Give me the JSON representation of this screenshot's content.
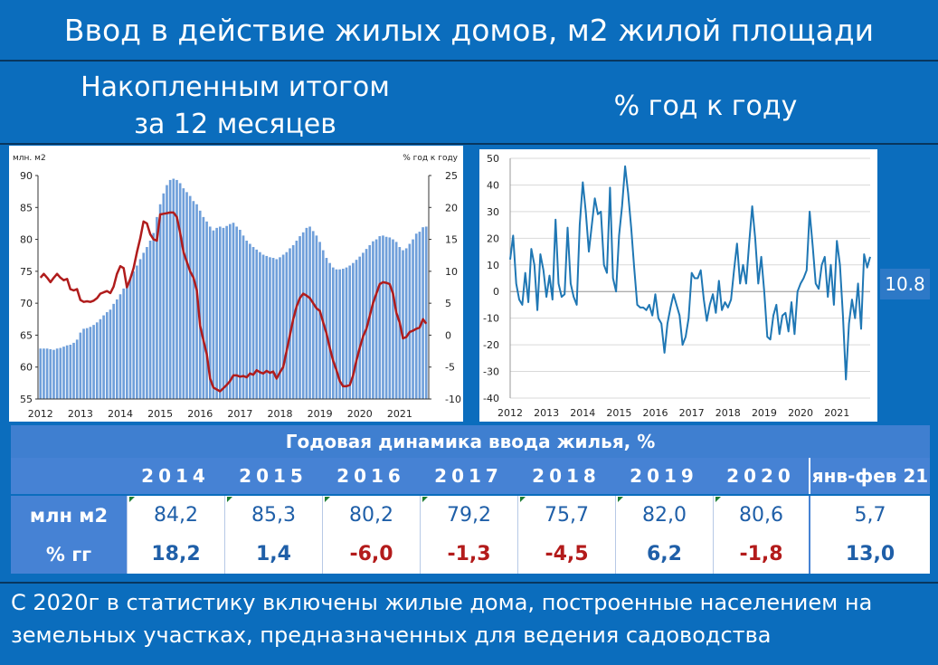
{
  "title": "Ввод в действие жилых домов, м2 жилой площади",
  "subtitle_left_line1": "Накопленным итогом",
  "subtitle_left_line2": "за 12 месяцев",
  "subtitle_right": "% год к году",
  "callout": "10.8",
  "colors": {
    "background": "#0b6dbd",
    "bars": "#6f9fda",
    "red_line": "#b01c1c",
    "blue_line": "#1f77b4",
    "table_header": "#3f7fd0",
    "negative": "#b31b1b"
  },
  "chart_data": [
    {
      "type": "bar+line",
      "left_axis_label": "млн. м2",
      "right_axis_label": "% год к году",
      "ylim_left": [
        55,
        90
      ],
      "ylim_right": [
        -10,
        25
      ],
      "y_ticks_left": [
        55,
        60,
        65,
        70,
        75,
        80,
        85,
        90
      ],
      "y_ticks_right": [
        -10,
        -5,
        0,
        5,
        10,
        15,
        20,
        25
      ],
      "x_ticks": [
        "2012",
        "2013",
        "2014",
        "2015",
        "2016",
        "2017",
        "2018",
        "2019",
        "2020",
        "2021"
      ],
      "start": "2012-01",
      "series": [
        {
          "type": "bar",
          "axis": "left",
          "values": [
            62.9,
            62.9,
            62.9,
            62.8,
            62.7,
            62.9,
            63.0,
            63.2,
            63.4,
            63.5,
            63.8,
            64.3,
            65.4,
            66.0,
            66.1,
            66.3,
            66.6,
            67.0,
            67.5,
            68.1,
            68.6,
            69.0,
            69.9,
            70.6,
            71.4,
            72.3,
            73.0,
            73.9,
            75.0,
            75.9,
            76.9,
            77.9,
            78.8,
            79.8,
            81.0,
            83.5,
            85.5,
            87.2,
            88.5,
            89.3,
            89.5,
            89.3,
            88.8,
            88.0,
            87.4,
            86.8,
            86.0,
            85.5,
            84.5,
            83.5,
            82.8,
            82.0,
            81.4,
            81.8,
            82.0,
            81.8,
            82.1,
            82.4,
            82.6,
            82.0,
            81.5,
            80.6,
            79.8,
            79.3,
            78.8,
            78.4,
            78.0,
            77.6,
            77.4,
            77.2,
            77.1,
            76.9,
            77.2,
            77.6,
            78.0,
            78.6,
            79.1,
            79.8,
            80.5,
            81.1,
            81.8,
            82.0,
            81.3,
            80.6,
            79.6,
            78.3,
            77.1,
            76.3,
            75.6,
            75.3,
            75.3,
            75.4,
            75.6,
            75.9,
            76.3,
            76.8,
            77.3,
            77.9,
            78.5,
            79.1,
            79.7,
            80.0,
            80.5,
            80.6,
            80.4,
            80.3,
            80.0,
            79.6,
            78.8,
            78.3,
            78.6,
            79.3,
            80.0,
            80.9,
            81.2,
            81.9,
            82.0
          ]
        },
        {
          "type": "line",
          "axis": "right",
          "values": [
            9.0,
            9.6,
            9.0,
            8.3,
            9.0,
            9.6,
            9.0,
            8.6,
            8.8,
            7.2,
            7.0,
            7.2,
            5.5,
            5.2,
            5.3,
            5.2,
            5.4,
            5.8,
            6.5,
            6.7,
            6.9,
            6.6,
            7.6,
            9.6,
            10.8,
            10.5,
            7.5,
            8.8,
            10.5,
            13.0,
            15.2,
            17.8,
            17.5,
            15.8,
            15.0,
            14.8,
            18.9,
            19.0,
            19.1,
            19.2,
            19.2,
            18.5,
            16.0,
            13.0,
            11.5,
            10.0,
            9.0,
            7.0,
            1.5,
            -0.8,
            -3.0,
            -6.8,
            -8.2,
            -8.5,
            -8.8,
            -8.3,
            -7.8,
            -7.2,
            -6.3,
            -6.3,
            -6.5,
            -6.4,
            -6.6,
            -6.0,
            -6.2,
            -5.5,
            -5.8,
            -6.0,
            -5.6,
            -5.9,
            -5.7,
            -6.8,
            -5.8,
            -5.0,
            -2.5,
            0.0,
            2.5,
            4.5,
            5.8,
            6.5,
            6.2,
            5.8,
            5.0,
            4.2,
            3.8,
            2.0,
            0.3,
            -2.0,
            -4.0,
            -5.5,
            -7.2,
            -8.0,
            -8.0,
            -7.8,
            -6.3,
            -4.0,
            -2.0,
            -0.2,
            1.0,
            3.0,
            5.0,
            6.5,
            8.0,
            8.3,
            8.2,
            8.0,
            6.5,
            3.5,
            2.0,
            -0.5,
            -0.3,
            0.5,
            0.7,
            1.0,
            1.2,
            2.5,
            1.8
          ]
        }
      ]
    },
    {
      "type": "line",
      "ylim": [
        -40,
        50
      ],
      "y_ticks": [
        -40,
        -30,
        -20,
        -10,
        0,
        10,
        20,
        30,
        40,
        50
      ],
      "x_ticks": [
        "2012",
        "2013",
        "2014",
        "2015",
        "2016",
        "2017",
        "2018",
        "2019",
        "2020",
        "2021"
      ],
      "start": "2012-01",
      "values": [
        12,
        21,
        3,
        -3,
        -5,
        7,
        -4,
        16,
        10,
        -7,
        14,
        8,
        -2,
        6,
        -3,
        27,
        3,
        -2,
        -1,
        24,
        3,
        -2,
        -5,
        25,
        41,
        30,
        15,
        25,
        35,
        29,
        30,
        10,
        7,
        39,
        5,
        0,
        21,
        32,
        47,
        37,
        24,
        9,
        -5,
        -6,
        -6,
        -7,
        -5,
        -9,
        -1,
        -10,
        -12,
        -23,
        -12,
        -6,
        -1,
        -5,
        -9,
        -20,
        -17,
        -10,
        7,
        5,
        5,
        8,
        -3,
        -11,
        -5,
        -1,
        -8,
        4,
        -7,
        -4,
        -6,
        -3,
        8,
        18,
        3,
        10,
        3,
        18,
        32,
        20,
        3,
        13,
        0,
        -17,
        -18,
        -9,
        -5,
        -16,
        -9,
        -8,
        -15,
        -4,
        -16,
        0,
        3,
        5,
        8,
        30,
        17,
        3,
        1,
        10,
        13,
        -2,
        10,
        -5,
        19,
        10,
        -9,
        -33,
        -12,
        -3,
        -10,
        3,
        -14,
        14,
        9,
        13
      ]
    }
  ],
  "table": {
    "header": "Годовая динамика ввода жилья, %",
    "years": [
      "2014",
      "2015",
      "2016",
      "2017",
      "2018",
      "2019",
      "2020",
      "янв-фев 21"
    ],
    "rows": [
      {
        "label": "млн м2",
        "values": [
          "84,2",
          "85,3",
          "80,2",
          "79,2",
          "75,7",
          "82,0",
          "80,6",
          "5,7"
        ]
      },
      {
        "label": "% гг",
        "values": [
          "18,2",
          "1,4",
          "-6,0",
          "-1,3",
          "-4,5",
          "6,2",
          "-1,8",
          "13,0"
        ]
      }
    ]
  },
  "footnote": "С 2020г в статистику включены жилые дома, построенные населением на земельных участках, предназначенных для ведения садоводства"
}
